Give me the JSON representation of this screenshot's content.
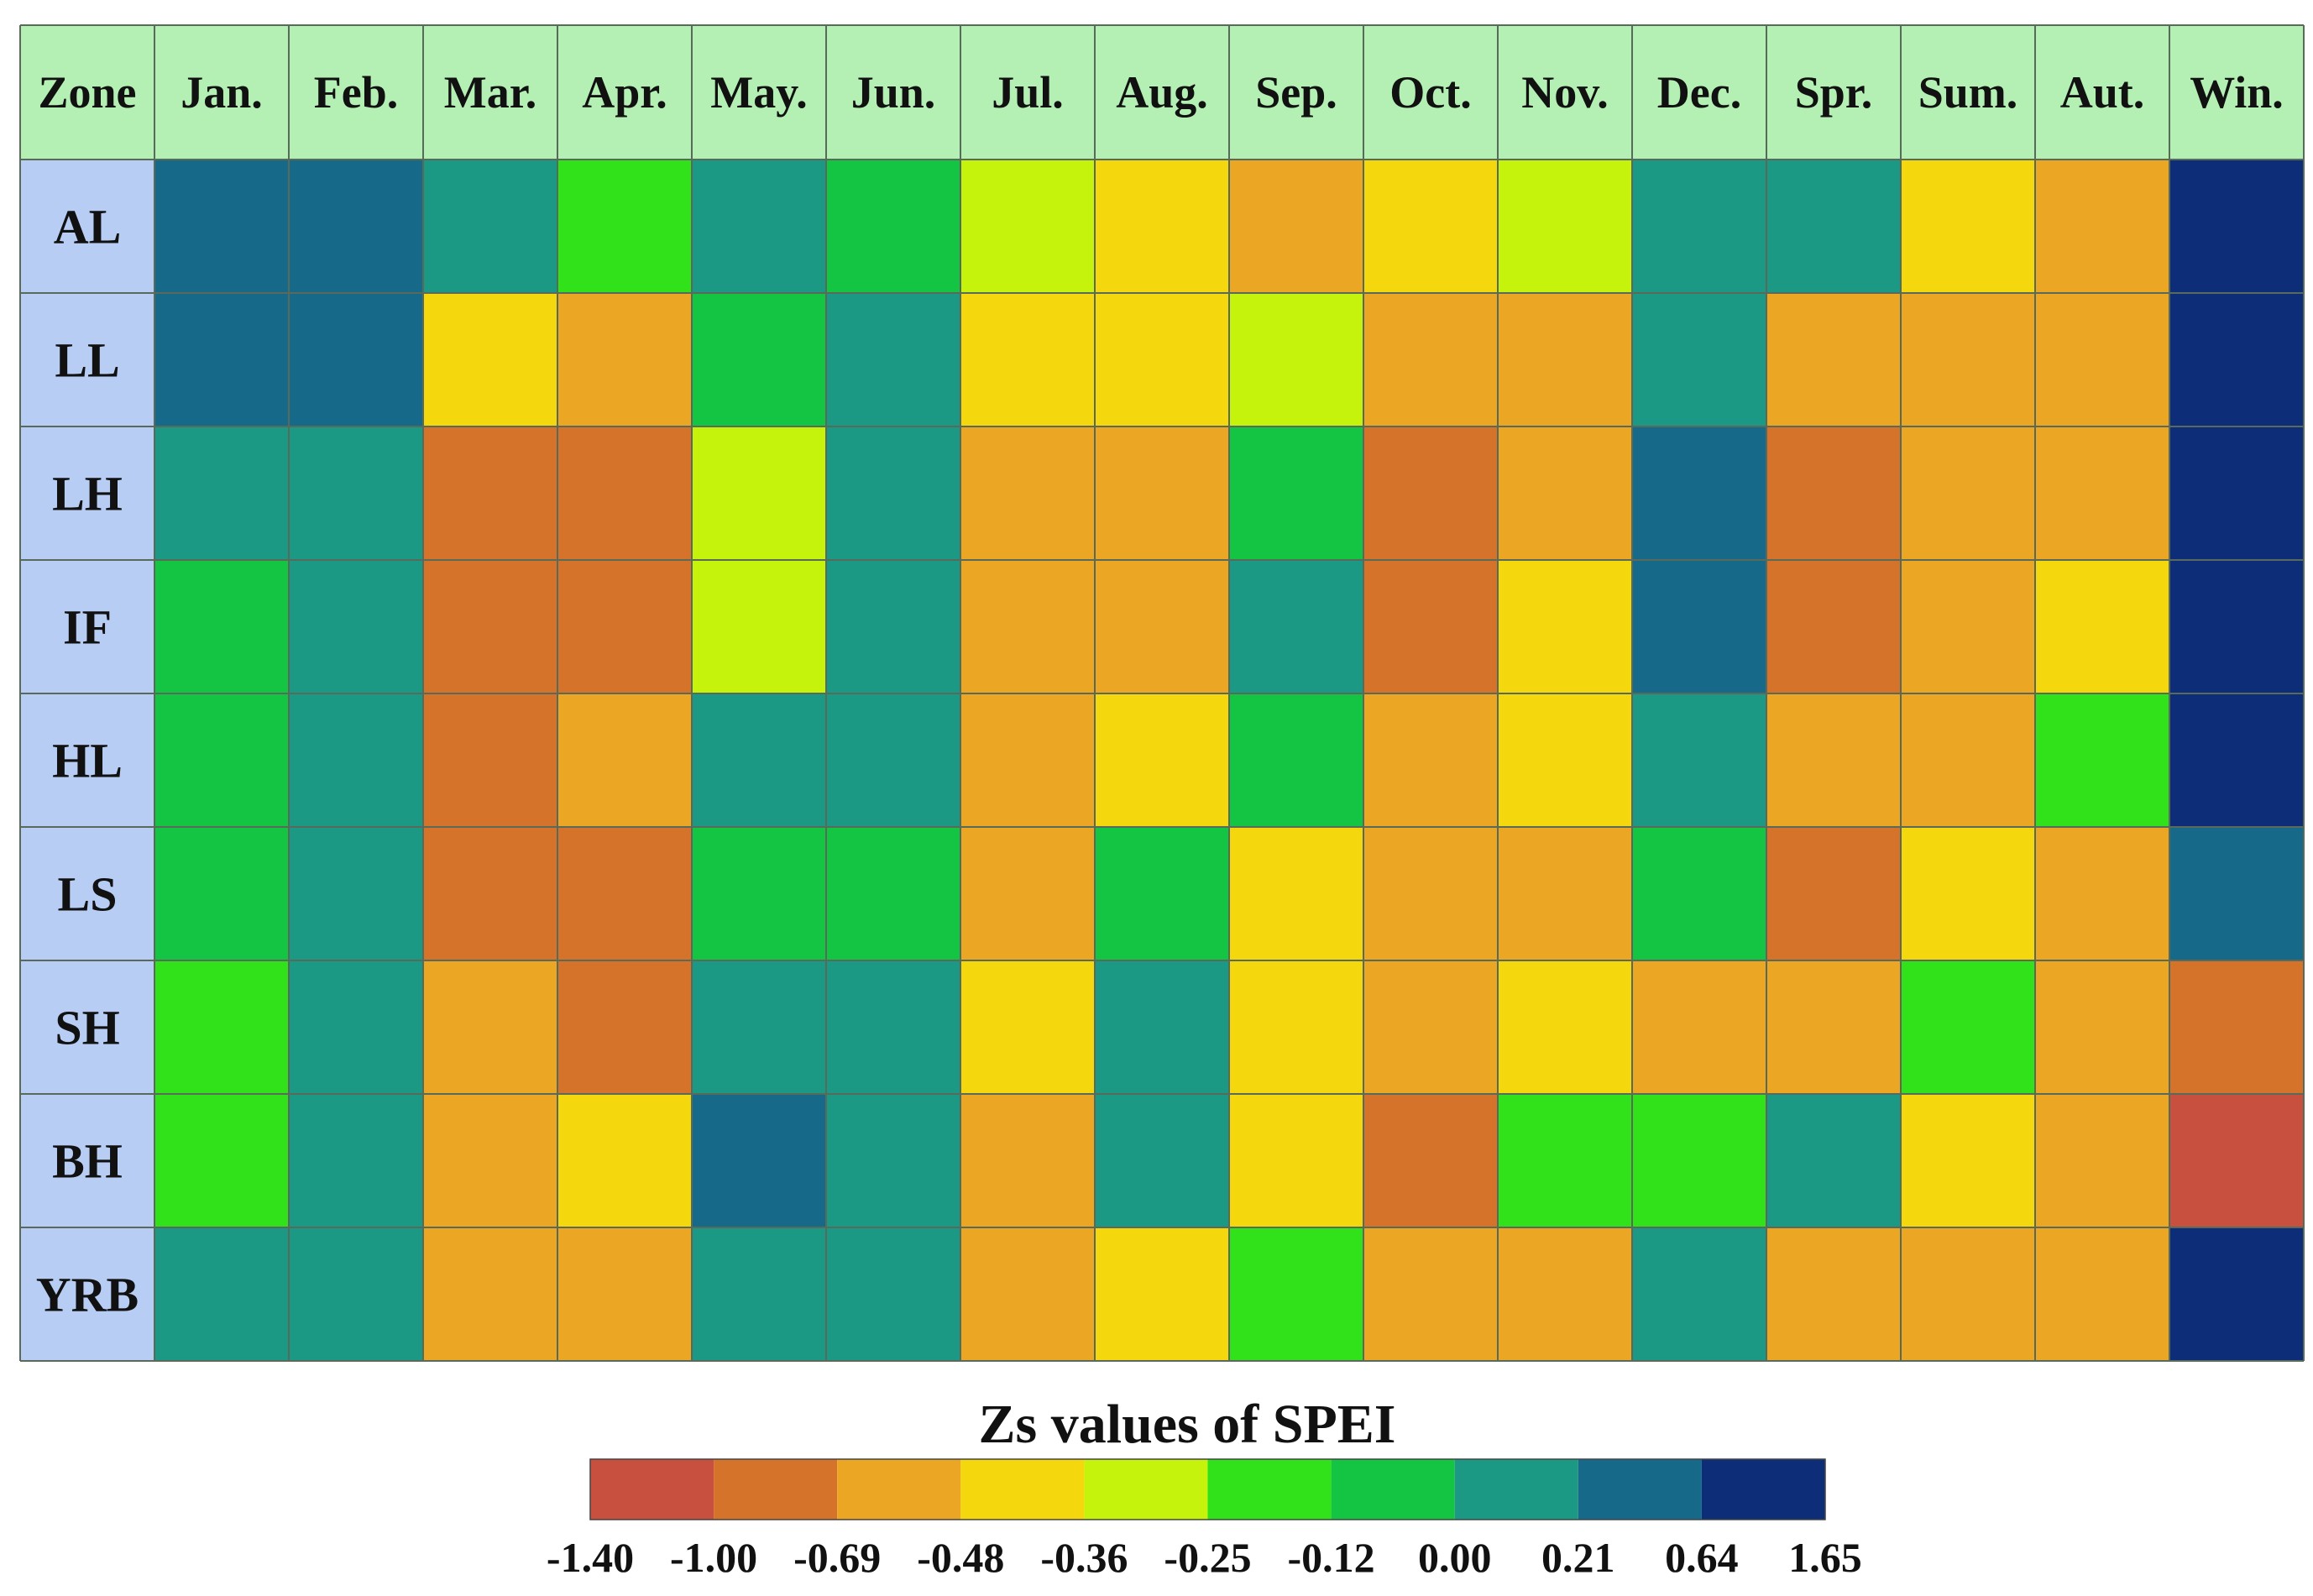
{
  "chart_data": {
    "type": "heatmap",
    "corner_label": "Zone",
    "columns": [
      "Jan.",
      "Feb.",
      "Mar.",
      "Apr.",
      "May.",
      "Jun.",
      "Jul.",
      "Aug.",
      "Sep.",
      "Oct.",
      "Nov.",
      "Dec.",
      "Spr.",
      "Sum.",
      "Aut.",
      "Win."
    ],
    "rows": [
      "AL",
      "LL",
      "LH",
      "IF",
      "HL",
      "LS",
      "SH",
      "BH",
      "YRB"
    ],
    "values": [
      [
        0.43,
        0.43,
        0.11,
        -0.18,
        0.11,
        -0.06,
        -0.3,
        -0.42,
        -0.58,
        -0.42,
        -0.3,
        0.11,
        0.11,
        -0.42,
        -0.58,
        1.0
      ],
      [
        0.43,
        0.43,
        -0.42,
        -0.52,
        -0.06,
        0.11,
        -0.42,
        -0.42,
        -0.3,
        -0.58,
        -0.52,
        0.11,
        -0.52,
        -0.52,
        -0.52,
        1.0
      ],
      [
        0.11,
        0.11,
        -0.85,
        -0.85,
        -0.3,
        0.11,
        -0.52,
        -0.58,
        -0.06,
        -0.85,
        -0.52,
        0.43,
        -0.85,
        -0.58,
        -0.52,
        1.0
      ],
      [
        -0.06,
        0.11,
        -0.85,
        -0.85,
        -0.3,
        0.11,
        -0.52,
        -0.58,
        0.11,
        -0.85,
        -0.42,
        0.43,
        -0.85,
        -0.58,
        -0.42,
        1.0
      ],
      [
        -0.06,
        0.11,
        -0.85,
        -0.58,
        0.11,
        0.11,
        -0.52,
        -0.42,
        -0.06,
        -0.58,
        -0.42,
        0.11,
        -0.58,
        -0.52,
        -0.18,
        1.0
      ],
      [
        -0.06,
        0.11,
        -0.85,
        -0.85,
        -0.06,
        -0.06,
        -0.52,
        -0.06,
        -0.42,
        -0.58,
        -0.58,
        -0.06,
        -0.85,
        -0.42,
        -0.58,
        0.43
      ],
      [
        -0.18,
        0.11,
        -0.58,
        -0.85,
        0.11,
        0.11,
        -0.42,
        0.11,
        -0.42,
        -0.52,
        -0.42,
        -0.58,
        -0.52,
        -0.18,
        -0.58,
        -0.85
      ],
      [
        -0.18,
        0.11,
        -0.58,
        -0.42,
        0.43,
        0.11,
        -0.58,
        0.11,
        -0.42,
        -0.85,
        -0.18,
        -0.18,
        0.11,
        -0.42,
        -0.58,
        -1.2
      ],
      [
        0.11,
        0.11,
        -0.58,
        -0.58,
        0.11,
        0.11,
        -0.52,
        -0.42,
        -0.18,
        -0.58,
        -0.52,
        0.11,
        -0.58,
        -0.52,
        -0.52,
        1.0
      ]
    ],
    "colorbar": {
      "title": "Zs values of SPEI",
      "ticks": [
        "-1.40",
        "-1.00",
        "-0.69",
        "-0.48",
        "-0.36",
        "-0.25",
        "-0.12",
        "0.00",
        "0.21",
        "0.64",
        "1.65"
      ],
      "bins": [
        -1.4,
        -1.0,
        -0.69,
        -0.48,
        -0.36,
        -0.25,
        -0.12,
        0.0,
        0.21,
        0.64,
        1.65
      ],
      "colors": [
        "#c7503f",
        "#d5732a",
        "#eba623",
        "#f5d70d",
        "#c6f30c",
        "#31e11a",
        "#14c443",
        "#1c9985",
        "#17698a",
        "#0d2d78"
      ]
    },
    "header_bg": "#b4f0b4",
    "rowlabel_bg": "#b7cdf3",
    "grid_color": "#5a6a5a"
  }
}
